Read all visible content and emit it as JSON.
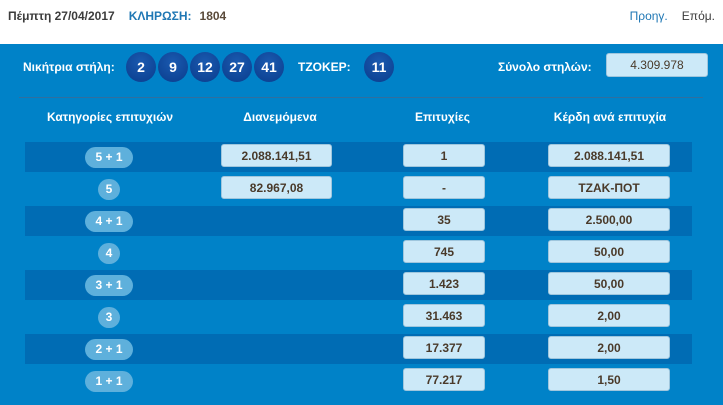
{
  "header": {
    "date": "Πέμπτη 27/04/2017",
    "draw_label": "ΚΛΗΡΩΣΗ:",
    "draw_number": "1804",
    "prev": "Προηγ.",
    "next": "Επόμ."
  },
  "result": {
    "winning_label": "Νικήτρια στήλη:",
    "numbers": [
      "2",
      "9",
      "12",
      "27",
      "41"
    ],
    "joker_label": "ΤΖΟΚΕΡ:",
    "joker": "11",
    "total_label": "Σύνολο στηλών:",
    "total": "4.309.978"
  },
  "table": {
    "headers": [
      "Κατηγορίες επιτυχιών",
      "Διανεμόμενα",
      "Επιτυχίες",
      "Κέρδη ανά επιτυχία"
    ],
    "rows": [
      {
        "category": "5 + 1",
        "distributed": "2.088.141,51",
        "winners": "1",
        "prize": "2.088.141,51"
      },
      {
        "category": "5",
        "distributed": "82.967,08",
        "winners": "-",
        "prize": "ΤΖΑΚ-ΠΟΤ"
      },
      {
        "category": "4 + 1",
        "distributed": "",
        "winners": "35",
        "prize": "2.500,00"
      },
      {
        "category": "4",
        "distributed": "",
        "winners": "745",
        "prize": "50,00"
      },
      {
        "category": "3 + 1",
        "distributed": "",
        "winners": "1.423",
        "prize": "50,00"
      },
      {
        "category": "3",
        "distributed": "",
        "winners": "31.463",
        "prize": "2,00"
      },
      {
        "category": "2 + 1",
        "distributed": "",
        "winners": "17.377",
        "prize": "2,00"
      },
      {
        "category": "1 + 1",
        "distributed": "",
        "winners": "77.217",
        "prize": "1,50"
      }
    ]
  },
  "colors": {
    "background": "#0082c8",
    "row_dark": "#006cb4",
    "box": "#cce9f8",
    "pill": "#5eb0dc",
    "ball": "#0a3c8c"
  }
}
